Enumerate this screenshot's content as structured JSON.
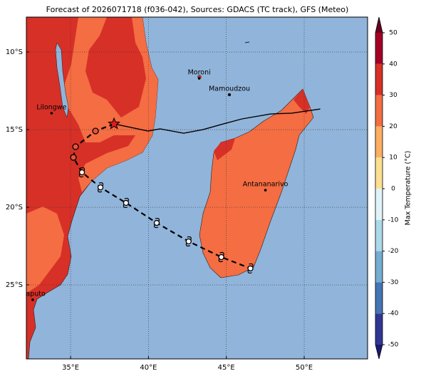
{
  "chart_data": {
    "type": "map",
    "title": "Forecast of 2026071718 (f036-042), Sources: GDACS (TC track), GFS (Meteo)",
    "xlim": [
      32.16,
      54.07
    ],
    "ylim": [
      -29.77,
      -7.75
    ],
    "xticks": [
      {
        "value": 35,
        "label": "35°E"
      },
      {
        "value": 40,
        "label": "40°E"
      },
      {
        "value": 45,
        "label": "45°E"
      },
      {
        "value": 50,
        "label": "50°E"
      }
    ],
    "yticks": [
      {
        "value": -10,
        "label": "10°S"
      },
      {
        "value": -15,
        "label": "15°S"
      },
      {
        "value": -20,
        "label": "20°S"
      },
      {
        "value": -25,
        "label": "25°S"
      }
    ],
    "grid": true,
    "cities": [
      {
        "name": "Moroni",
        "lon": 43.26,
        "lat": -11.7
      },
      {
        "name": "Mamoudzou",
        "lon": 45.2,
        "lat": -12.75
      },
      {
        "name": "Lilongwe",
        "lon": 33.78,
        "lat": -13.94
      },
      {
        "name": "Antananarivo",
        "lon": 47.51,
        "lat": -18.9
      },
      {
        "name": "Maputo",
        "lon": 32.57,
        "lat": -25.96
      }
    ],
    "solid_track": {
      "color": "#000000",
      "lon": [
        37.79,
        39.98,
        40.75,
        42.26,
        43.49,
        44.63,
        46.0,
        47.83,
        49.2,
        51.03
      ],
      "lat": [
        -14.63,
        -15.09,
        -14.95,
        -15.23,
        -15.0,
        -14.68,
        -14.31,
        -13.99,
        -13.94,
        -13.67
      ]
    },
    "dashed_track": {
      "color": "#000000",
      "lon": [
        37.79,
        36.6,
        35.32,
        35.18,
        35.73,
        36.92,
        38.56,
        40.53,
        42.58,
        44.68,
        46.55
      ],
      "lat": [
        -14.63,
        -15.09,
        -16.1,
        -16.79,
        -17.75,
        -18.72,
        -19.72,
        -21.01,
        -22.2,
        -23.21,
        -23.94
      ],
      "markers": [
        "star",
        "circle",
        "circle",
        "circle",
        "storm",
        "storm",
        "storm",
        "storm",
        "storm",
        "storm",
        "storm"
      ]
    },
    "colorbar": {
      "label": "Max Temperature (°C)",
      "ticks": [
        -50,
        -40,
        -30,
        -20,
        -10,
        0,
        10,
        20,
        30,
        40,
        50
      ],
      "colors": [
        "#313695",
        "#4575b4",
        "#74add1",
        "#abd9e9",
        "#e0f3f8",
        "#fee090",
        "#fdae61",
        "#f46d43",
        "#d73027",
        "#a50026"
      ],
      "under_color": "#1a1a6e",
      "over_color": "#67001f"
    }
  }
}
